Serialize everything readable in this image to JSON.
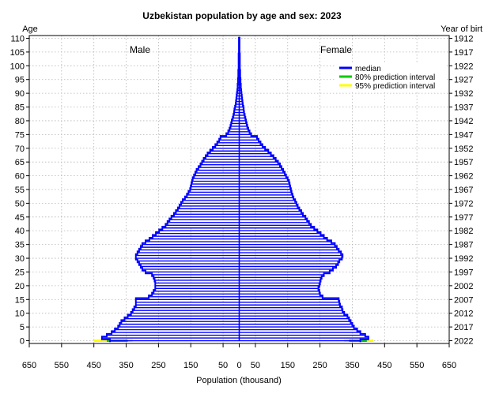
{
  "chart_data": {
    "type": "population-pyramid",
    "title": "Uzbekistan population by age and sex: 2023",
    "xlabel": "Population (thousand)",
    "ylabel_left": "Age",
    "ylabel_right": "Year of birt",
    "male_label": "Male",
    "female_label": "Female",
    "xlim": [
      -650,
      650
    ],
    "ylim": [
      -1,
      111
    ],
    "x_ticks": [
      -650,
      -550,
      -450,
      -350,
      -250,
      -150,
      -50,
      0,
      50,
      150,
      250,
      350,
      450,
      550,
      650
    ],
    "x_tick_labels": [
      "650",
      "550",
      "450",
      "350",
      "250",
      "150",
      "50",
      "0",
      "50",
      "150",
      "250",
      "350",
      "450",
      "550",
      "650"
    ],
    "age_ticks": [
      0,
      5,
      10,
      15,
      20,
      25,
      30,
      35,
      40,
      45,
      50,
      55,
      60,
      65,
      70,
      75,
      80,
      85,
      90,
      95,
      100,
      105,
      110
    ],
    "age_tick_labels": [
      "0",
      "5",
      "10",
      "15",
      "20",
      "25",
      "30",
      "35",
      "40",
      "45",
      "50",
      "55",
      "60",
      "65",
      "70",
      "75",
      "80",
      "85",
      "90",
      "95",
      "100",
      "105",
      "110"
    ],
    "birth_year_labels": [
      "2022",
      "2017",
      "2012",
      "2007",
      "2002",
      "1997",
      "1992",
      "1987",
      "1982",
      "1977",
      "1972",
      "1967",
      "1962",
      "1957",
      "1952",
      "1947",
      "1942",
      "1937",
      "1932",
      "1927",
      "1922",
      "1917",
      "1912"
    ],
    "legend": {
      "position": "top-right",
      "items": [
        {
          "label": "median",
          "color": "#0000ff"
        },
        {
          "label": "80% prediction interval",
          "color": "#00cc00"
        },
        {
          "label": "95% prediction interval",
          "color": "#ffff00"
        }
      ]
    },
    "grid": true,
    "colors": {
      "median": "#0000ff",
      "pi80": "#00cc00",
      "pi95": "#ffff00",
      "grid": "#b5b5b5"
    },
    "ages": [
      0,
      1,
      2,
      3,
      4,
      5,
      6,
      7,
      8,
      9,
      10,
      11,
      12,
      13,
      14,
      15,
      16,
      17,
      18,
      19,
      20,
      21,
      22,
      23,
      24,
      25,
      26,
      27,
      28,
      29,
      30,
      31,
      32,
      33,
      34,
      35,
      36,
      37,
      38,
      39,
      40,
      41,
      42,
      43,
      44,
      45,
      46,
      47,
      48,
      49,
      50,
      51,
      52,
      53,
      54,
      55,
      56,
      57,
      58,
      59,
      60,
      61,
      62,
      63,
      64,
      65,
      66,
      67,
      68,
      69,
      70,
      71,
      72,
      73,
      74,
      75,
      76,
      77,
      78,
      79,
      80,
      81,
      82,
      83,
      84,
      85,
      86,
      87,
      88,
      89,
      90,
      91,
      92,
      93,
      94,
      95,
      96,
      97,
      98,
      99,
      100,
      101,
      102,
      103,
      104,
      105,
      106,
      107,
      108,
      109,
      110
    ],
    "male": [
      400,
      425,
      410,
      395,
      385,
      375,
      370,
      365,
      355,
      345,
      335,
      330,
      325,
      320,
      320,
      320,
      280,
      270,
      265,
      260,
      260,
      260,
      262,
      265,
      270,
      290,
      300,
      305,
      310,
      315,
      320,
      320,
      315,
      310,
      305,
      300,
      290,
      278,
      268,
      258,
      248,
      238,
      228,
      222,
      216,
      210,
      202,
      196,
      190,
      185,
      180,
      175,
      168,
      162,
      157,
      152,
      150,
      148,
      146,
      144,
      140,
      136,
      132,
      126,
      120,
      115,
      110,
      104,
      98,
      90,
      82,
      74,
      68,
      62,
      58,
      40,
      34,
      30,
      27,
      25,
      23,
      20,
      18,
      16,
      15,
      13,
      11,
      10,
      9,
      8,
      7,
      6,
      5,
      5,
      4,
      4,
      3,
      3,
      3,
      2,
      2,
      2,
      2,
      2,
      2,
      1,
      1,
      1,
      1,
      1,
      1
    ],
    "female": [
      375,
      400,
      390,
      375,
      365,
      355,
      350,
      345,
      340,
      335,
      325,
      320,
      318,
      312,
      310,
      308,
      258,
      250,
      248,
      245,
      248,
      250,
      252,
      255,
      262,
      280,
      290,
      300,
      306,
      310,
      318,
      320,
      315,
      308,
      302,
      296,
      285,
      272,
      262,
      252,
      242,
      232,
      222,
      216,
      210,
      205,
      197,
      192,
      186,
      181,
      177,
      173,
      168,
      165,
      162,
      160,
      158,
      156,
      154,
      150,
      145,
      141,
      136,
      131,
      126,
      120,
      113,
      106,
      98,
      90,
      80,
      72,
      66,
      60,
      55,
      37,
      32,
      28,
      25,
      23,
      21,
      19,
      17,
      15,
      14,
      13,
      11,
      10,
      9,
      8,
      7,
      6,
      5,
      5,
      4,
      4,
      3,
      3,
      3,
      2,
      2,
      2,
      2,
      2,
      2,
      1,
      1,
      1,
      1,
      1,
      1
    ],
    "age0_pi80": {
      "male": [
        345,
        410
      ],
      "female": [
        340,
        395
      ]
    },
    "age0_pi95": {
      "male": [
        330,
        450
      ],
      "female": [
        325,
        415
      ]
    }
  }
}
